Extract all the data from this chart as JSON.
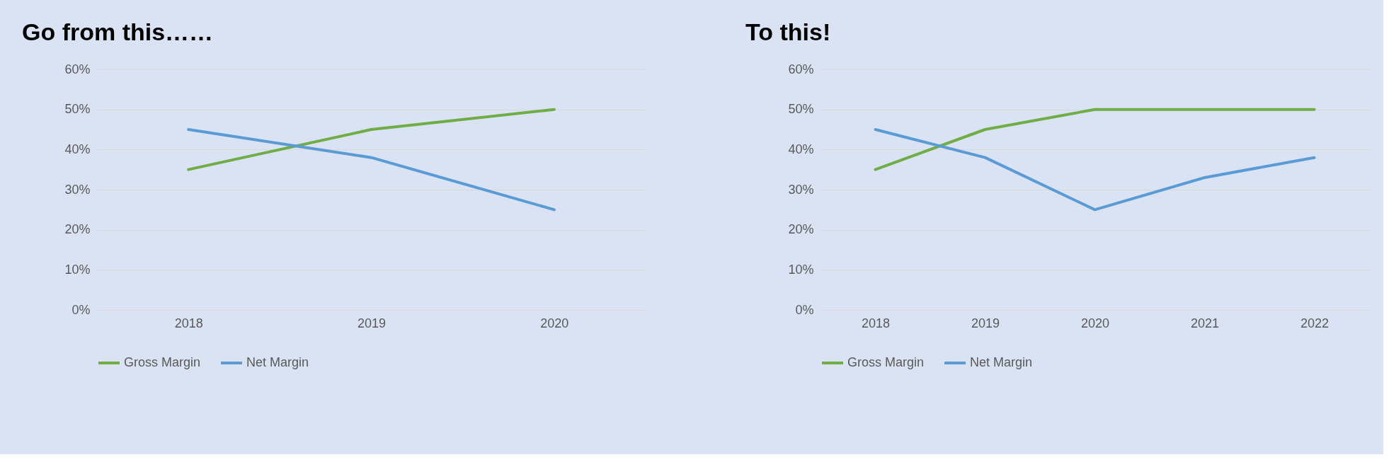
{
  "chart_data": [
    {
      "type": "line",
      "title": "Go from this……",
      "categories": [
        "2018",
        "2019",
        "2020"
      ],
      "series": [
        {
          "name": "Gross Margin",
          "color": "#70ad47",
          "values": [
            35,
            45,
            50
          ]
        },
        {
          "name": "Net Margin",
          "color": "#5b9bd5",
          "values": [
            45,
            38,
            25
          ]
        }
      ],
      "ylim": [
        0,
        60
      ],
      "yticks": [
        {
          "value": 0,
          "label": "0%"
        },
        {
          "value": 10,
          "label": "10%"
        },
        {
          "value": 20,
          "label": "20%"
        },
        {
          "value": 30,
          "label": "30%"
        },
        {
          "value": 40,
          "label": "40%"
        },
        {
          "value": 50,
          "label": "50%"
        },
        {
          "value": 60,
          "label": "60%"
        }
      ],
      "grid": "y",
      "legend": "bottom",
      "marker": "none",
      "line_style": "solid"
    },
    {
      "type": "line",
      "title": "To this!",
      "categories": [
        "2018",
        "2019",
        "2020",
        "2021",
        "2022"
      ],
      "series": [
        {
          "name": "Gross Margin",
          "color": "#70ad47",
          "values": [
            35,
            45,
            50,
            50,
            50
          ]
        },
        {
          "name": "Net Margin",
          "color": "#5b9bd5",
          "values": [
            45,
            38,
            25,
            33,
            38
          ]
        }
      ],
      "ylim": [
        0,
        60
      ],
      "yticks": [
        {
          "value": 0,
          "label": "0%"
        },
        {
          "value": 10,
          "label": "10%"
        },
        {
          "value": 20,
          "label": "20%"
        },
        {
          "value": 30,
          "label": "30%"
        },
        {
          "value": 40,
          "label": "40%"
        },
        {
          "value": 50,
          "label": "50%"
        },
        {
          "value": 60,
          "label": "60%"
        }
      ],
      "grid": "y",
      "legend": "bottom",
      "marker": "none",
      "line_style": "solid"
    }
  ]
}
